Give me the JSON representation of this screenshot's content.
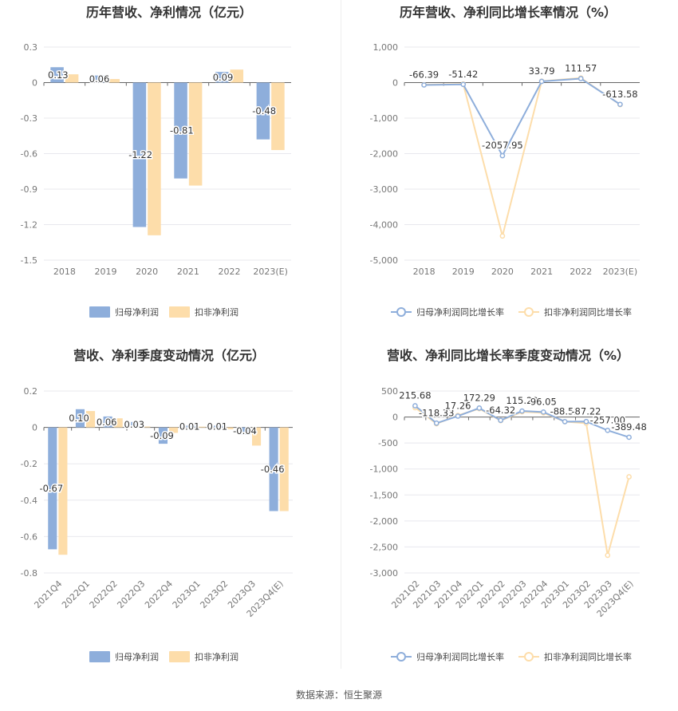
{
  "source_label": "数据来源：恒生聚源",
  "colors": {
    "primary": "#8eaedb",
    "secondary": "#fdddaa",
    "grid": "#e8e8ee",
    "axis": "#999999"
  },
  "chart_data": [
    {
      "type": "bar",
      "title": "历年营收、净利情况（亿元）",
      "categories": [
        "2018",
        "2019",
        "2020",
        "2021",
        "2022",
        "2023(E)"
      ],
      "ylim": [
        -1.5,
        0.3
      ],
      "yticks": [
        0.3,
        0,
        -0.3,
        -0.6,
        -0.9,
        -1.2,
        -1.5
      ],
      "ytick_labels": [
        "0.3",
        "0",
        "-0.3",
        "-0.6",
        "-0.9",
        "-1.2",
        "-1.5"
      ],
      "series": [
        {
          "name": "归母净利润",
          "values": [
            0.13,
            0.06,
            -1.22,
            -0.81,
            0.09,
            -0.48
          ],
          "labels": [
            "0.13",
            "0.06",
            "-1.22",
            "-0.81",
            "0.09",
            "-0.48"
          ]
        },
        {
          "name": "扣非净利润",
          "values": [
            0.07,
            0.03,
            -1.29,
            -0.87,
            0.11,
            -0.57
          ]
        }
      ],
      "grid": true,
      "legend": "bottom"
    },
    {
      "type": "line",
      "title": "历年营收、净利同比增长率情况（%）",
      "categories": [
        "2018",
        "2019",
        "2020",
        "2021",
        "2022",
        "2023(E)"
      ],
      "ylim": [
        -5000,
        1000
      ],
      "yticks": [
        1000,
        0,
        -1000,
        -2000,
        -3000,
        -4000,
        -5000
      ],
      "ytick_labels": [
        "1,000",
        "0",
        "-1,000",
        "-2,000",
        "-3,000",
        "-4,000",
        "-5,000"
      ],
      "series": [
        {
          "name": "归母净利润同比增长率",
          "values": [
            -66.39,
            -51.42,
            -2057.95,
            33.79,
            111.57,
            -613.58
          ],
          "labels": [
            "-66.39",
            "-51.42",
            "-2057.95",
            "33.79",
            "111.57",
            "-613.58"
          ]
        },
        {
          "name": "扣非净利润同比增长率",
          "values": [
            -60,
            -40,
            -4320,
            40,
            130,
            -620
          ]
        }
      ],
      "grid": true,
      "legend": "bottom"
    },
    {
      "type": "bar",
      "title": "营收、净利季度变动情况（亿元）",
      "categories": [
        "2021Q4",
        "2022Q1",
        "2022Q2",
        "2022Q3",
        "2022Q4",
        "2023Q1",
        "2023Q2",
        "2023Q3",
        "2023Q4(E)"
      ],
      "ylim": [
        -0.8,
        0.2
      ],
      "yticks": [
        0.2,
        0,
        -0.2,
        -0.4,
        -0.6,
        -0.8
      ],
      "ytick_labels": [
        "0.2",
        "0",
        "-0.2",
        "-0.4",
        "-0.6",
        "-0.8"
      ],
      "series": [
        {
          "name": "归母净利润",
          "values": [
            -0.67,
            0.1,
            0.06,
            0.03,
            -0.09,
            0.01,
            0.01,
            -0.04,
            -0.46
          ],
          "labels": [
            "-0.67",
            "0.10",
            "0.06",
            "0.03",
            "-0.09",
            "0.01",
            "0.01",
            "-0.04",
            "-0.46"
          ]
        },
        {
          "name": "扣非净利润",
          "values": [
            -0.7,
            0.09,
            0.05,
            0.005,
            -0.03,
            0.004,
            -0.01,
            -0.1,
            -0.46
          ]
        }
      ],
      "grid": true,
      "legend": "bottom"
    },
    {
      "type": "line",
      "title": "营收、净利同比增长率季度变动情况（%）",
      "categories": [
        "2021Q2",
        "2021Q3",
        "2021Q4",
        "2022Q1",
        "2022Q2",
        "2022Q3",
        "2022Q4",
        "2023Q1",
        "2023Q2",
        "2023Q3",
        "2023Q4(E)"
      ],
      "ylim": [
        -3000,
        500
      ],
      "yticks": [
        500,
        0,
        -500,
        -1000,
        -1500,
        -2000,
        -2500,
        -3000
      ],
      "ytick_labels": [
        "500",
        "0",
        "-500",
        "-1,000",
        "-1,500",
        "-2,000",
        "-2,500",
        "-3,000"
      ],
      "series": [
        {
          "name": "归母净利润同比增长率",
          "values": [
            215.68,
            -118.33,
            17.26,
            172.29,
            -64.32,
            115.28,
            96.05,
            -88.52,
            -87.22,
            -257.0,
            -389.48
          ],
          "labels": [
            "215.68",
            "-118.33",
            "17.26",
            "172.29",
            "-64.32",
            "115.28",
            "96.05",
            "-88.52",
            "-87.22",
            "-257.00",
            "-389.48"
          ]
        },
        {
          "name": "扣非净利润同比增长率",
          "values": [
            180,
            -130,
            30,
            160,
            -70,
            100,
            80,
            -90,
            -120,
            -2660,
            -1150
          ]
        }
      ],
      "grid": true,
      "legend": "bottom"
    }
  ]
}
